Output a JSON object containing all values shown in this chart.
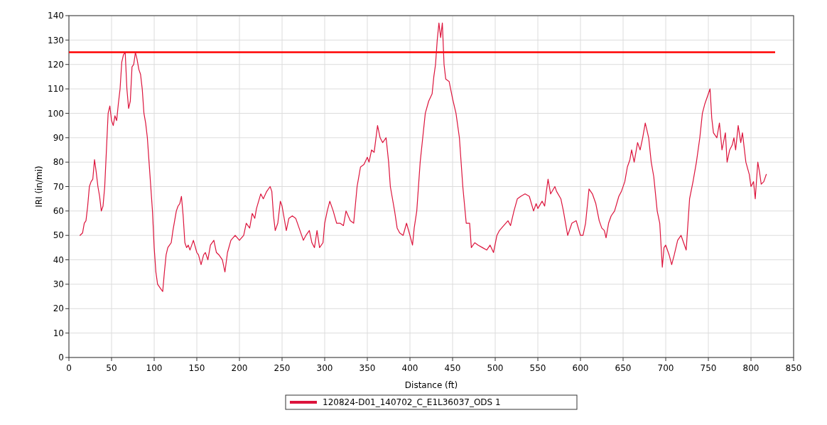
{
  "chart_data": {
    "type": "line",
    "xlabel": "Distance (ft)",
    "ylabel": "IRI (in/mi)",
    "xlim": [
      0,
      850
    ],
    "xticks": [
      0,
      50,
      100,
      150,
      200,
      250,
      300,
      350,
      400,
      450,
      500,
      550,
      600,
      650,
      700,
      750,
      800,
      850
    ],
    "ylim": [
      0,
      140
    ],
    "yticks": [
      0,
      10,
      20,
      30,
      40,
      50,
      60,
      70,
      80,
      90,
      100,
      110,
      120,
      130,
      140
    ],
    "grid": true,
    "legend": "bottom",
    "line_style": "solid",
    "marker": "none",
    "ref_lines": [
      {
        "axis": "y",
        "value": 125,
        "color": "#ff0000"
      }
    ],
    "series": [
      {
        "name": "120824-D01_140702_C_E1L36037_ODS 1",
        "color": "#dc143c",
        "x": [
          13,
          16,
          18,
          20,
          22,
          24,
          26,
          28,
          30,
          32,
          34,
          36,
          38,
          40,
          42,
          44,
          46,
          48,
          50,
          52,
          54,
          56,
          58,
          60,
          62,
          64,
          66,
          68,
          70,
          72,
          74,
          76,
          78,
          80,
          82,
          84,
          86,
          88,
          90,
          92,
          94,
          96,
          98,
          100,
          102,
          104,
          106,
          108,
          110,
          112,
          114,
          116,
          118,
          120,
          122,
          124,
          126,
          128,
          130,
          132,
          134,
          136,
          138,
          140,
          142,
          146,
          150,
          152,
          155,
          158,
          160,
          163,
          166,
          170,
          173,
          176,
          180,
          183,
          186,
          190,
          195,
          200,
          205,
          208,
          212,
          215,
          218,
          220,
          225,
          228,
          232,
          236,
          238,
          240,
          242,
          245,
          248,
          250,
          252,
          255,
          258,
          262,
          266,
          270,
          275,
          278,
          282,
          285,
          288,
          291,
          294,
          298,
          300,
          303,
          306,
          310,
          314,
          318,
          322,
          325,
          330,
          334,
          338,
          342,
          346,
          350,
          352,
          355,
          358,
          362,
          365,
          368,
          372,
          375,
          377,
          379,
          382,
          385,
          388,
          392,
          396,
          400,
          403,
          405,
          408,
          412,
          415,
          418,
          422,
          426,
          428,
          430,
          432,
          434,
          436,
          438,
          440,
          442,
          446,
          450,
          454,
          458,
          462,
          466,
          470,
          472,
          476,
          480,
          485,
          490,
          494,
          498,
          502,
          505,
          510,
          515,
          518,
          522,
          526,
          530,
          535,
          540,
          545,
          548,
          550,
          555,
          558,
          560,
          562,
          565,
          570,
          572,
          577,
          580,
          582,
          585,
          590,
          595,
          600,
          603,
          606,
          610,
          614,
          618,
          622,
          625,
          628,
          630,
          633,
          636,
          640,
          645,
          648,
          652,
          655,
          658,
          660,
          663,
          667,
          670,
          673,
          676,
          678,
          680,
          683,
          686,
          690,
          693,
          696,
          698,
          700,
          704,
          707,
          710,
          714,
          718,
          722,
          724,
          728,
          732,
          736,
          740,
          743,
          746,
          750,
          752,
          754,
          756,
          760,
          763,
          766,
          770,
          772,
          775,
          778,
          780,
          782,
          785,
          788,
          790,
          794,
          798,
          800,
          803,
          805,
          808,
          810,
          812,
          815,
          818
        ],
        "values": [
          50,
          51,
          55,
          56,
          62,
          70,
          72,
          73,
          81,
          76,
          70,
          66,
          60,
          62,
          70,
          85,
          100,
          103,
          97,
          95,
          99,
          97,
          104,
          110,
          121,
          124,
          125,
          110,
          102,
          105,
          119,
          120,
          125,
          122,
          118,
          116,
          110,
          100,
          96,
          90,
          80,
          70,
          60,
          45,
          35,
          30,
          29,
          28,
          27,
          35,
          42,
          45,
          46,
          47,
          52,
          56,
          60,
          62,
          63,
          66,
          58,
          47,
          45,
          46,
          44,
          48,
          43,
          42,
          38,
          42,
          43,
          40,
          46,
          48,
          43,
          42,
          40,
          35,
          43,
          48,
          50,
          48,
          50,
          55,
          53,
          59,
          57,
          61,
          67,
          65,
          68,
          70,
          68,
          58,
          52,
          55,
          64,
          62,
          58,
          52,
          57,
          58,
          57,
          53,
          48,
          50,
          52,
          47,
          45,
          52,
          45,
          47,
          55,
          60,
          64,
          60,
          55,
          55,
          54,
          60,
          56,
          55,
          70,
          78,
          79,
          82,
          80,
          85,
          84,
          95,
          90,
          88,
          90,
          80,
          70,
          66,
          60,
          53,
          51,
          50,
          55,
          50,
          46,
          53,
          60,
          80,
          90,
          100,
          105,
          108,
          115,
          120,
          130,
          137,
          131,
          137,
          120,
          114,
          113,
          106,
          100,
          90,
          70,
          55,
          55,
          45,
          47,
          46,
          45,
          44,
          46,
          43,
          50,
          52,
          54,
          56,
          54,
          60,
          65,
          66,
          67,
          66,
          60,
          63,
          61,
          64,
          62,
          68,
          73,
          67,
          70,
          68,
          65,
          60,
          56,
          50,
          55,
          56,
          50,
          50,
          55,
          69,
          67,
          63,
          56,
          53,
          52,
          49,
          55,
          58,
          60,
          66,
          68,
          72,
          78,
          81,
          85,
          80,
          88,
          85,
          90,
          96,
          93,
          90,
          80,
          74,
          60,
          55,
          37,
          45,
          46,
          42,
          38,
          42,
          48,
          50,
          46,
          44,
          65,
          72,
          80,
          90,
          100,
          104,
          108,
          110,
          98,
          92,
          90,
          96,
          85,
          92,
          80,
          85,
          87,
          90,
          85,
          95,
          88,
          92,
          80,
          75,
          70,
          72,
          65,
          80,
          76,
          71,
          72,
          75
        ]
      }
    ]
  }
}
